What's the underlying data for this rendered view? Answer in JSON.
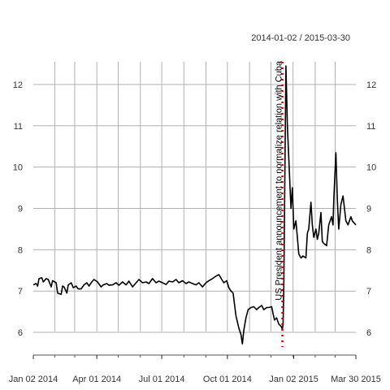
{
  "chart_data": {
    "type": "line",
    "title": "",
    "date_range_label": "2014-01-02 / 2015-03-30",
    "xlabel": "",
    "ylabel": "",
    "ylim": [
      5.45,
      12.55
    ],
    "xlim": [
      "2014-01-02",
      "2015-03-30"
    ],
    "grid": true,
    "y_ticks": [
      6,
      7,
      8,
      9,
      10,
      11,
      12
    ],
    "x_ticks": [
      {
        "date": "2014-01-02",
        "label": "Jan 02 2014"
      },
      {
        "date": "2014-04-01",
        "label": "Apr 01 2014"
      },
      {
        "date": "2014-07-01",
        "label": "Jul 01 2014"
      },
      {
        "date": "2014-10-01",
        "label": "Oct 01 2014"
      },
      {
        "date": "2015-01-02",
        "label": "Jan 02 2015"
      },
      {
        "date": "2015-03-30",
        "label": "Mar 30 2015"
      }
    ],
    "series": [
      {
        "color": "#000000",
        "points": [
          [
            "2014-01-02",
            7.15
          ],
          [
            "2014-01-06",
            7.18
          ],
          [
            "2014-01-08",
            7.12
          ],
          [
            "2014-01-10",
            7.3
          ],
          [
            "2014-01-14",
            7.32
          ],
          [
            "2014-01-16",
            7.22
          ],
          [
            "2014-01-20",
            7.3
          ],
          [
            "2014-01-23",
            7.28
          ],
          [
            "2014-01-27",
            7.1
          ],
          [
            "2014-01-29",
            7.25
          ],
          [
            "2014-02-03",
            7.2
          ],
          [
            "2014-02-05",
            6.95
          ],
          [
            "2014-02-10",
            6.92
          ],
          [
            "2014-02-12",
            7.12
          ],
          [
            "2014-02-14",
            7.1
          ],
          [
            "2014-02-18",
            6.95
          ],
          [
            "2014-02-20",
            7.15
          ],
          [
            "2014-02-24",
            7.2
          ],
          [
            "2014-02-27",
            7.08
          ],
          [
            "2014-03-03",
            7.12
          ],
          [
            "2014-03-06",
            7.05
          ],
          [
            "2014-03-10",
            7.05
          ],
          [
            "2014-03-14",
            7.15
          ],
          [
            "2014-03-18",
            7.2
          ],
          [
            "2014-03-21",
            7.12
          ],
          [
            "2014-03-25",
            7.22
          ],
          [
            "2014-03-28",
            7.28
          ],
          [
            "2014-04-02",
            7.22
          ],
          [
            "2014-04-07",
            7.1
          ],
          [
            "2014-04-10",
            7.15
          ],
          [
            "2014-04-15",
            7.18
          ],
          [
            "2014-04-18",
            7.14
          ],
          [
            "2014-04-23",
            7.15
          ],
          [
            "2014-04-28",
            7.2
          ],
          [
            "2014-05-02",
            7.14
          ],
          [
            "2014-05-07",
            7.22
          ],
          [
            "2014-05-12",
            7.15
          ],
          [
            "2014-05-16",
            7.24
          ],
          [
            "2014-05-21",
            7.1
          ],
          [
            "2014-05-26",
            7.2
          ],
          [
            "2014-05-30",
            7.28
          ],
          [
            "2014-06-04",
            7.2
          ],
          [
            "2014-06-09",
            7.22
          ],
          [
            "2014-06-13",
            7.18
          ],
          [
            "2014-06-18",
            7.3
          ],
          [
            "2014-06-23",
            7.2
          ],
          [
            "2014-06-27",
            7.24
          ],
          [
            "2014-07-02",
            7.2
          ],
          [
            "2014-07-07",
            7.16
          ],
          [
            "2014-07-11",
            7.24
          ],
          [
            "2014-07-16",
            7.22
          ],
          [
            "2014-07-21",
            7.28
          ],
          [
            "2014-07-25",
            7.2
          ],
          [
            "2014-07-30",
            7.25
          ],
          [
            "2014-08-04",
            7.18
          ],
          [
            "2014-08-08",
            7.22
          ],
          [
            "2014-08-13",
            7.18
          ],
          [
            "2014-08-18",
            7.15
          ],
          [
            "2014-08-22",
            7.2
          ],
          [
            "2014-08-27",
            7.1
          ],
          [
            "2014-09-01",
            7.2
          ],
          [
            "2014-09-05",
            7.25
          ],
          [
            "2014-09-10",
            7.3
          ],
          [
            "2014-09-15",
            7.36
          ],
          [
            "2014-09-19",
            7.4
          ],
          [
            "2014-09-23",
            7.28
          ],
          [
            "2014-09-26",
            7.2
          ],
          [
            "2014-09-30",
            7.25
          ],
          [
            "2014-10-03",
            7.08
          ],
          [
            "2014-10-06",
            7.0
          ],
          [
            "2014-10-09",
            6.95
          ],
          [
            "2014-10-13",
            6.4
          ],
          [
            "2014-10-15",
            6.25
          ],
          [
            "2014-10-17",
            6.1
          ],
          [
            "2014-10-20",
            5.95
          ],
          [
            "2014-10-22",
            5.72
          ],
          [
            "2014-10-24",
            6.05
          ],
          [
            "2014-10-27",
            6.35
          ],
          [
            "2014-10-30",
            6.55
          ],
          [
            "2014-11-03",
            6.6
          ],
          [
            "2014-11-07",
            6.62
          ],
          [
            "2014-11-11",
            6.55
          ],
          [
            "2014-11-14",
            6.6
          ],
          [
            "2014-11-18",
            6.65
          ],
          [
            "2014-11-21",
            6.55
          ],
          [
            "2014-11-25",
            6.6
          ],
          [
            "2014-11-28",
            6.6
          ],
          [
            "2014-12-02",
            6.62
          ],
          [
            "2014-12-04",
            6.45
          ],
          [
            "2014-12-06",
            6.3
          ],
          [
            "2014-12-09",
            6.35
          ],
          [
            "2014-12-12",
            6.2
          ],
          [
            "2014-12-15",
            6.15
          ],
          [
            "2014-12-17",
            6.08
          ],
          [
            "2014-12-18",
            6.2
          ],
          [
            "2014-12-19",
            7.1
          ],
          [
            "2014-12-22",
            12.45
          ],
          [
            "2014-12-24",
            11.0
          ],
          [
            "2014-12-29",
            9.0
          ],
          [
            "2014-12-31",
            9.5
          ],
          [
            "2015-01-02",
            8.5
          ],
          [
            "2015-01-05",
            8.7
          ],
          [
            "2015-01-07",
            8.3
          ],
          [
            "2015-01-09",
            7.9
          ],
          [
            "2015-01-12",
            7.8
          ],
          [
            "2015-01-15",
            7.85
          ],
          [
            "2015-01-19",
            7.8
          ],
          [
            "2015-01-21",
            8.4
          ],
          [
            "2015-01-23",
            8.5
          ],
          [
            "2015-01-26",
            9.15
          ],
          [
            "2015-01-28",
            8.6
          ],
          [
            "2015-01-30",
            8.3
          ],
          [
            "2015-02-02",
            8.5
          ],
          [
            "2015-02-04",
            8.25
          ],
          [
            "2015-02-06",
            8.4
          ],
          [
            "2015-02-09",
            8.9
          ],
          [
            "2015-02-11",
            8.2
          ],
          [
            "2015-02-13",
            8.15
          ],
          [
            "2015-02-17",
            8.1
          ],
          [
            "2015-02-20",
            8.6
          ],
          [
            "2015-02-24",
            8.8
          ],
          [
            "2015-02-26",
            8.6
          ],
          [
            "2015-02-27",
            9.2
          ],
          [
            "2015-03-02",
            10.35
          ],
          [
            "2015-03-04",
            9.2
          ],
          [
            "2015-03-06",
            8.5
          ],
          [
            "2015-03-09",
            9.1
          ],
          [
            "2015-03-12",
            9.3
          ],
          [
            "2015-03-16",
            8.7
          ],
          [
            "2015-03-19",
            8.6
          ],
          [
            "2015-03-23",
            8.8
          ],
          [
            "2015-03-25",
            8.7
          ],
          [
            "2015-03-30",
            8.6
          ]
        ]
      }
    ],
    "event": {
      "date": "2014-12-17",
      "label": "US President announcement to normalize relation with Cuba",
      "color": "#cc0000",
      "style": "dotted"
    }
  }
}
